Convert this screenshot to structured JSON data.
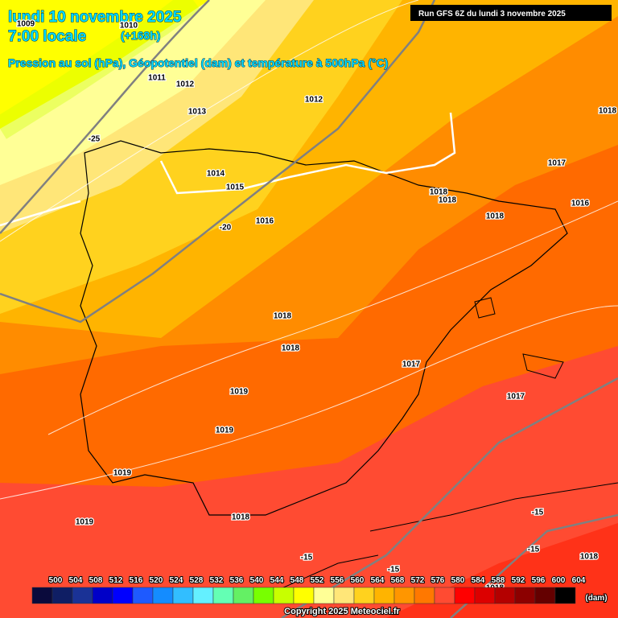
{
  "header": {
    "date": "lundi 10 novembre 2025",
    "time": "7:00 locale",
    "lead": "(+168h)",
    "subtitle": "Pression au sol (hPa), Géopotentiel (dam) et température à 500hPa (°C)",
    "run": "Run GFS 6Z du lundi 3 novembre 2025"
  },
  "map_labels": [
    "1009",
    "1010",
    "1011",
    "1012",
    "1013",
    "1012",
    "1018",
    "-25",
    "1017",
    "1014",
    "1015",
    "1018",
    "1018",
    "1016",
    "1018",
    "1016",
    "-20",
    "1018",
    "1018",
    "1017",
    "1019",
    "1017",
    "1019",
    "1019",
    "1019",
    "1018",
    "-15",
    "-15",
    "-15",
    "-15",
    "1018",
    "1018"
  ],
  "legend": {
    "levels": [
      500,
      504,
      508,
      512,
      516,
      520,
      524,
      528,
      532,
      536,
      540,
      544,
      548,
      552,
      556,
      560,
      564,
      568,
      572,
      576,
      580,
      584,
      588,
      592,
      596,
      600,
      604
    ],
    "colors": [
      "#0a0a3c",
      "#0f1e64",
      "#1a3296",
      "#0000c8",
      "#0000ff",
      "#1e5aff",
      "#148cff",
      "#32beff",
      "#64f0ff",
      "#64ffb4",
      "#64f064",
      "#78ff00",
      "#c8ff00",
      "#ffff00",
      "#ffff96",
      "#ffe678",
      "#ffd21e",
      "#ffb400",
      "#ff9600",
      "#ff7800",
      "#ff4b32",
      "#ff0000",
      "#dc0000",
      "#b40000",
      "#8c0000",
      "#640000",
      "#000000"
    ],
    "unit": "(dam)"
  },
  "copyright": "Copyright 2025 Meteociel.fr"
}
